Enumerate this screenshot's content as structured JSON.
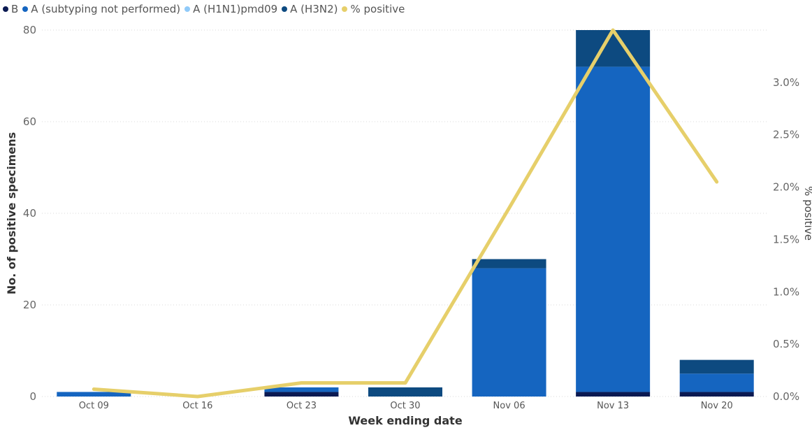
{
  "chart_data": {
    "type": "bar",
    "stacked": true,
    "categories": [
      "Oct 09",
      "Oct 16",
      "Oct 23",
      "Oct 30",
      "Nov 06",
      "Nov 13",
      "Nov 20"
    ],
    "series": [
      {
        "name": "B",
        "color": "#0b1a52",
        "values": [
          0,
          0,
          1,
          0,
          0,
          1,
          1
        ]
      },
      {
        "name": "A (subtyping not performed)",
        "color": "#1565c0",
        "values": [
          1,
          0,
          1,
          0,
          28,
          71,
          4
        ]
      },
      {
        "name": "A (H1N1)pmd09",
        "color": "#90caf9",
        "values": [
          0,
          0,
          0,
          0,
          0,
          0,
          0
        ]
      },
      {
        "name": "A (H3N2)",
        "color": "#0d4a80",
        "values": [
          0,
          0,
          0,
          2,
          2,
          8,
          3
        ]
      }
    ],
    "line_series": {
      "name": "% positive",
      "color": "#e6cf6a",
      "values": [
        0.07,
        0.0,
        0.13,
        0.13,
        1.8,
        3.5,
        2.05
      ]
    },
    "xlabel": "Week ending date",
    "ylabel": "No. of positive specimens",
    "y2label": "% positive",
    "ylim": [
      0,
      80
    ],
    "yticks": [
      0,
      20,
      40,
      60,
      80
    ],
    "y2lim": [
      0,
      3.5
    ],
    "y2ticks": [
      "0.0%",
      "0.5%",
      "1.0%",
      "1.5%",
      "2.0%",
      "2.5%",
      "3.0%"
    ],
    "y2tick_values": [
      0,
      0.5,
      1.0,
      1.5,
      2.0,
      2.5,
      3.0
    ],
    "grid": true,
    "legend": "top-left"
  }
}
